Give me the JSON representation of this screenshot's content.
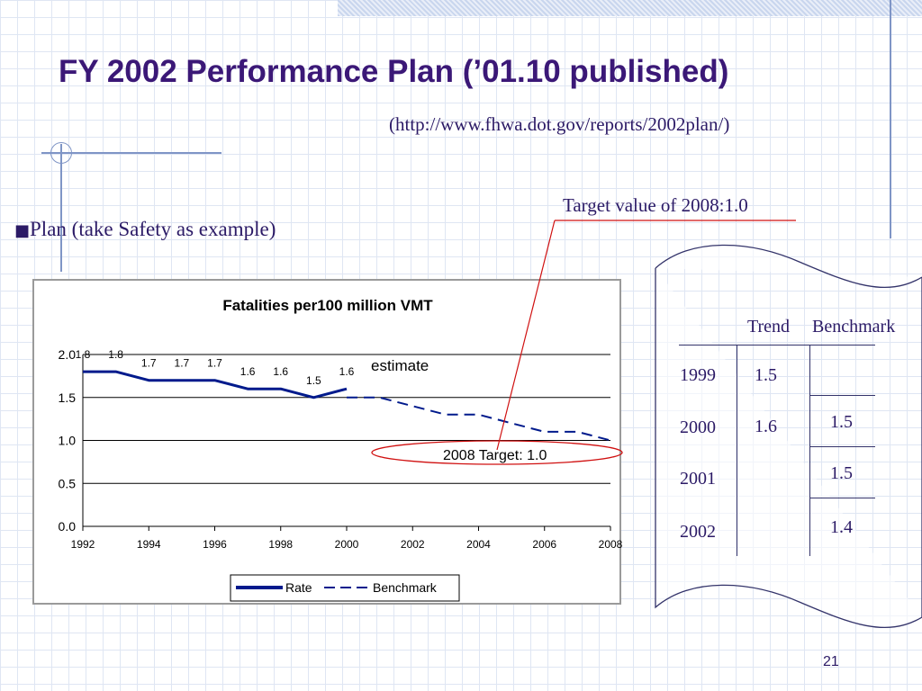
{
  "slide": {
    "title": "FY 2002 Performance Plan (’01.10 published)",
    "url": "(http://www.fhwa.dot.gov/reports/2002plan/)",
    "bullet_marker": "■",
    "bullet": "Plan (take Safety as example)",
    "callout": "Target value of 2008:1.0",
    "page_number": "21"
  },
  "table": {
    "headers": [
      "Trend",
      "Benchmark"
    ],
    "rows": [
      {
        "year": "1999",
        "trend": "1.5",
        "benchmark": ""
      },
      {
        "year": "2000",
        "trend": "1.6",
        "benchmark": "1.5"
      },
      {
        "year": "2001",
        "trend": "",
        "benchmark": "1.5"
      },
      {
        "year": "2002",
        "trend": "",
        "benchmark": "1.4"
      }
    ]
  },
  "chart_data": {
    "type": "line",
    "title": "Fatalities per100 million VMT",
    "xlim": [
      1992,
      2008
    ],
    "ylim": [
      0,
      2.0
    ],
    "x_ticks": [
      "1992",
      "1994",
      "1996",
      "1998",
      "2000",
      "2002",
      "2004",
      "2006",
      "2008"
    ],
    "y_ticks": [
      "0.0",
      "0.5",
      "1.0",
      "1.5",
      "2.0"
    ],
    "grid": "horizontal",
    "legend_position": "bottom",
    "series": [
      {
        "name": "Rate",
        "style": "solid",
        "color": "#001a8c",
        "x": [
          1992,
          1993,
          1994,
          1995,
          1996,
          1997,
          1998,
          1999,
          2000
        ],
        "y": [
          1.8,
          1.8,
          1.7,
          1.7,
          1.7,
          1.6,
          1.6,
          1.5,
          1.6
        ],
        "labels": [
          "1.8",
          "1.8",
          "1.7",
          "1.7",
          "1.7",
          "1.6",
          "1.6",
          "1.5",
          "1.6"
        ]
      },
      {
        "name": "Benchmark",
        "style": "dashed",
        "color": "#001a8c",
        "x": [
          2000,
          2001,
          2002,
          2003,
          2004,
          2005,
          2006,
          2007,
          2008
        ],
        "y": [
          1.5,
          1.5,
          1.4,
          1.3,
          1.3,
          1.2,
          1.1,
          1.1,
          1.0
        ]
      }
    ],
    "annotations": {
      "estimate": "estimate",
      "target": "2008 Target: 1.0"
    }
  }
}
